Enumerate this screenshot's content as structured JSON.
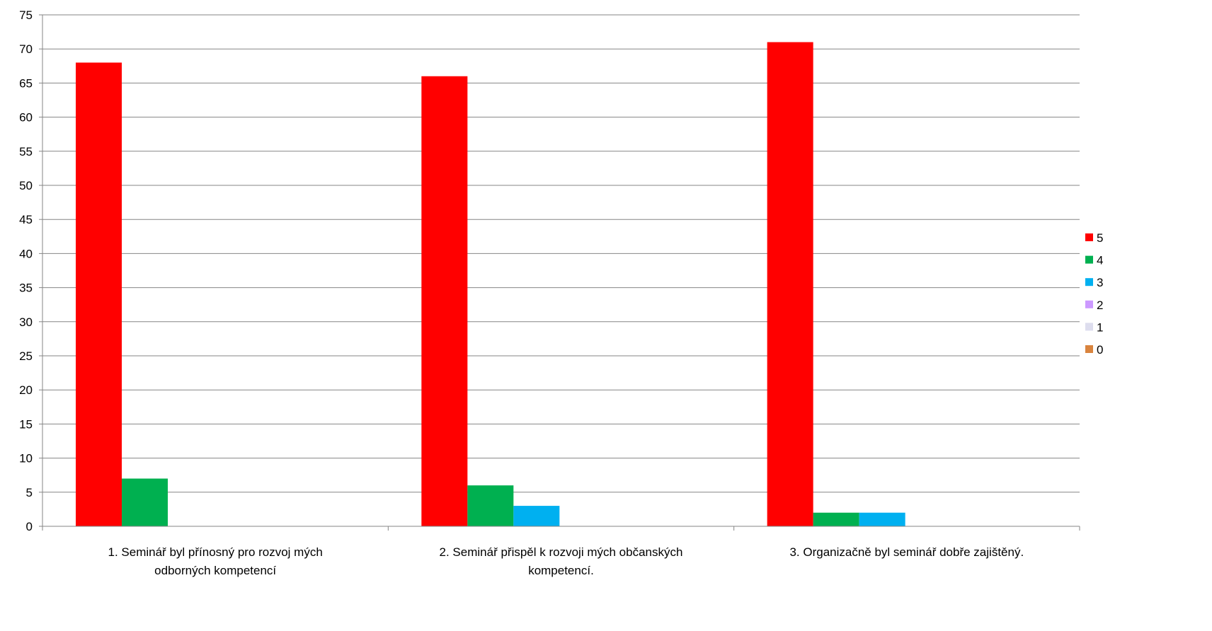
{
  "chart_data": {
    "type": "bar",
    "categories": [
      [
        "1. Seminář byl přínosný pro rozvoj mých",
        "odborných kompetencí"
      ],
      [
        "2. Seminář přispěl k rozvoji mých občanských",
        "kompetencí."
      ],
      [
        "3. Organizačně byl seminář dobře zajištěný."
      ]
    ],
    "series": [
      {
        "name": "5",
        "color": "#FF0000",
        "values": [
          68,
          66,
          71
        ]
      },
      {
        "name": "4",
        "color": "#00B050",
        "values": [
          7,
          6,
          2
        ]
      },
      {
        "name": "3",
        "color": "#00B0F0",
        "values": [
          0,
          3,
          2
        ]
      },
      {
        "name": "2",
        "color": "#CC99FF",
        "values": [
          0,
          0,
          0
        ]
      },
      {
        "name": "1",
        "color": "#DDDDEE",
        "values": [
          0,
          0,
          0
        ]
      },
      {
        "name": "0",
        "color": "#D9843E",
        "values": [
          0,
          0,
          0
        ]
      }
    ],
    "ylim": [
      0,
      75
    ],
    "yticks": [
      0,
      5,
      10,
      15,
      20,
      25,
      30,
      35,
      40,
      45,
      50,
      55,
      60,
      65,
      70,
      75
    ],
    "grid": true,
    "legend_position": "right"
  }
}
